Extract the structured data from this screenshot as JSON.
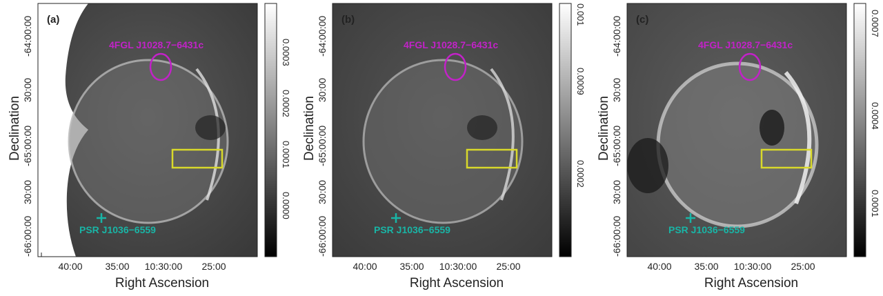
{
  "colors": {
    "gamma_source": "#c222c8",
    "pulsar": "#19b5a6",
    "region_box": "#d9d92a"
  },
  "axes": {
    "xlabel": "Right Ascension",
    "ylabel": "Declination",
    "xticks": [
      "40:00",
      "35:00",
      "10:30:00",
      "25:00"
    ],
    "yticks": [
      "-64:00:00",
      "30:00",
      "-65:00:00",
      "30:00",
      "-66:00:00"
    ]
  },
  "annotations": {
    "gamma_source_label": "4FGL J1028.7−6431c",
    "pulsar_label": "PSR J1036−6559"
  },
  "panels": [
    {
      "label": "(a)",
      "colorbar_ticks": [
        "0.0000",
        "0.0001",
        "0.0002",
        "0.0003"
      ]
    },
    {
      "label": "(b)",
      "colorbar_ticks": [
        "0.0002",
        "0.0009",
        "0.001"
      ]
    },
    {
      "label": "(c)",
      "colorbar_ticks": [
        "0.0001",
        "0.0004",
        "0.0007"
      ]
    }
  ]
}
